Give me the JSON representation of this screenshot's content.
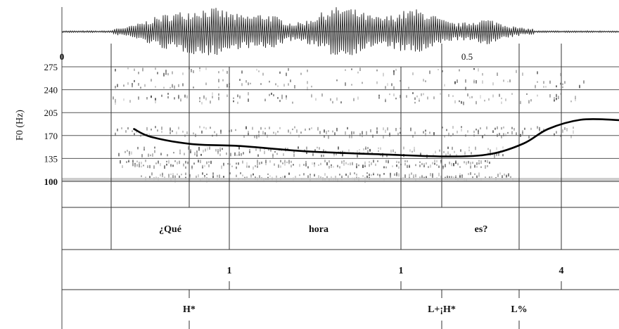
{
  "y_axis": {
    "label": "F0 (Hz)",
    "ticks": [
      "275",
      "240",
      "205",
      "170",
      "135",
      "100"
    ]
  },
  "time_axis": {
    "start_label": "0",
    "mid_label": "0.5"
  },
  "f0_contour": {
    "unit": "Hz",
    "points": [
      {
        "t": 0.089,
        "hz": 180
      },
      {
        "t": 0.11,
        "hz": 168
      },
      {
        "t": 0.16,
        "hz": 157
      },
      {
        "t": 0.22,
        "hz": 154
      },
      {
        "t": 0.3,
        "hz": 146
      },
      {
        "t": 0.4,
        "hz": 141
      },
      {
        "t": 0.48,
        "hz": 138
      },
      {
        "t": 0.53,
        "hz": 142
      },
      {
        "t": 0.57,
        "hz": 158
      },
      {
        "t": 0.6,
        "hz": 180
      },
      {
        "t": 0.64,
        "hz": 194
      },
      {
        "t": 0.68,
        "hz": 194
      },
      {
        "t": 0.71,
        "hz": 191
      }
    ]
  },
  "tiers": {
    "words": [
      {
        "text": "¿Qué"
      },
      {
        "text": "hora"
      },
      {
        "text": "es?"
      }
    ],
    "break_indices": [
      {
        "text": "1"
      },
      {
        "text": "1"
      },
      {
        "text": "4"
      }
    ],
    "tones": [
      {
        "text": "H*"
      },
      {
        "text": "L+¡H*"
      },
      {
        "text": "L%"
      }
    ]
  }
}
